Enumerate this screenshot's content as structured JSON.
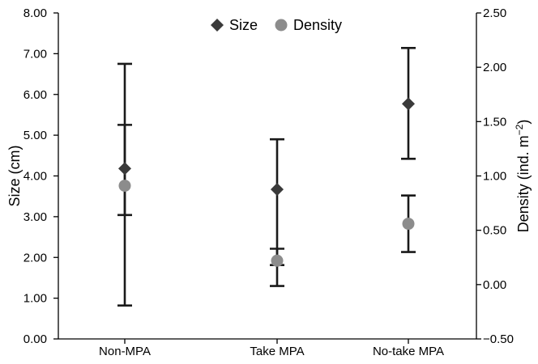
{
  "chart_data": {
    "type": "scatter",
    "categories": [
      "Non-MPA",
      "Take MPA",
      "No-take MPA"
    ],
    "left_axis": {
      "label": "Size (cm)",
      "ylim": [
        0,
        8
      ],
      "ticks": [
        "0.00",
        "1.00",
        "2.00",
        "3.00",
        "4.00",
        "5.00",
        "6.00",
        "7.00",
        "8.00"
      ]
    },
    "right_axis": {
      "label": "Density (ind. m",
      "label_superscript": "−2",
      "label_suffix": ")",
      "ylim": [
        -0.5,
        2.5
      ],
      "ticks": [
        "−0.50",
        "0.00",
        "0.50",
        "1.00",
        "1.50",
        "2.00",
        "2.50"
      ]
    },
    "series": [
      {
        "name": "Size",
        "axis": "left",
        "marker": "diamond",
        "color": "#3a3a3a",
        "values": [
          4.18,
          3.67,
          5.77
        ],
        "error_low": [
          0.82,
          1.3,
          4.42
        ],
        "error_high": [
          6.75,
          4.9,
          7.14
        ]
      },
      {
        "name": "Density",
        "axis": "right",
        "marker": "circle",
        "color": "#8c8c8c",
        "values": [
          0.91,
          0.22,
          0.56
        ],
        "error_low": [
          0.64,
          0.18,
          0.3
        ],
        "error_high": [
          1.47,
          0.33,
          0.82
        ]
      }
    ],
    "legend": {
      "position": "top-center"
    },
    "grid": false
  }
}
